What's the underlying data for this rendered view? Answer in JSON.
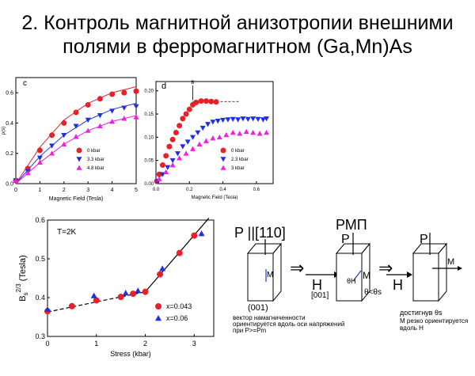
{
  "slide": {
    "title_line1": "2. Контроль магнитной анизотропии внешними",
    "title_line2": "полями в ферромагнитном (Ga,Mn)As"
  },
  "chart_data": [
    {
      "type": "scatter",
      "panel_label": "c",
      "xlabel": "Magnetic Field (Tesla)",
      "ylabel": "ρ(s)",
      "xlim": [
        0,
        5
      ],
      "ylim": [
        0,
        0.7
      ],
      "xticks": [
        "0",
        "1",
        "2",
        "3",
        "4",
        "5"
      ],
      "yticks": [
        "0.0",
        "0.2",
        "0.4",
        "0.6"
      ],
      "legend": [
        "0 kbar",
        "3.3 kbar",
        "4.8 kbar"
      ],
      "series": [
        {
          "name": "0 kbar",
          "marker": "circle",
          "color": "#e8202a",
          "x": [
            0,
            0.5,
            1,
            1.5,
            2,
            2.5,
            3,
            3.5,
            4,
            4.5,
            5
          ],
          "y": [
            0.02,
            0.1,
            0.22,
            0.32,
            0.4,
            0.47,
            0.52,
            0.56,
            0.59,
            0.6,
            0.61
          ]
        },
        {
          "name": "3.3 kbar",
          "marker": "triangle-down",
          "color": "#2030e0",
          "x": [
            0,
            0.5,
            1,
            1.5,
            2,
            2.5,
            3,
            3.5,
            4,
            4.5,
            5
          ],
          "y": [
            0.02,
            0.08,
            0.17,
            0.25,
            0.32,
            0.38,
            0.42,
            0.45,
            0.48,
            0.5,
            0.51
          ]
        },
        {
          "name": "4.8 kbar",
          "marker": "triangle-up",
          "color": "#ee22dd",
          "x": [
            0,
            0.5,
            1,
            1.5,
            2,
            2.5,
            3,
            3.5,
            4,
            4.5,
            5
          ],
          "y": [
            0.02,
            0.07,
            0.14,
            0.2,
            0.26,
            0.31,
            0.35,
            0.38,
            0.41,
            0.43,
            0.44
          ]
        }
      ],
      "fit_lines": [
        {
          "color": "#e8202a",
          "x": [
            0,
            1,
            2,
            3,
            4,
            5
          ],
          "y": [
            0,
            0.24,
            0.42,
            0.53,
            0.6,
            0.64
          ]
        },
        {
          "color": "#2030e0",
          "x": [
            0,
            1,
            2,
            3,
            4,
            5
          ],
          "y": [
            0,
            0.18,
            0.32,
            0.42,
            0.49,
            0.53
          ]
        },
        {
          "color": "#ee22dd",
          "x": [
            0,
            1,
            2,
            3,
            4,
            5
          ],
          "y": [
            0,
            0.14,
            0.26,
            0.35,
            0.41,
            0.45
          ]
        }
      ]
    },
    {
      "type": "scatter",
      "panel_label": "d",
      "annotation": "B",
      "xlabel": "Magnetic Field (Tesla)",
      "ylabel": "",
      "xlim": [
        0,
        0.7
      ],
      "ylim": [
        0,
        0.22
      ],
      "xticks": [
        "0.0",
        "0.2",
        "0.4",
        "0.6"
      ],
      "yticks": [
        "0.00",
        "0.05",
        "0.10",
        "0.15",
        "0.20"
      ],
      "legend": [
        "0 kbar",
        "2.3 kbar",
        "3 kbar"
      ],
      "series": [
        {
          "name": "0 kbar",
          "marker": "circle",
          "color": "#e8202a",
          "x": [
            0.005,
            0.02,
            0.04,
            0.06,
            0.08,
            0.1,
            0.12,
            0.14,
            0.16,
            0.18,
            0.2,
            0.22,
            0.24,
            0.27,
            0.3,
            0.33,
            0.36
          ],
          "y": [
            0.005,
            0.02,
            0.04,
            0.06,
            0.08,
            0.095,
            0.11,
            0.125,
            0.14,
            0.15,
            0.16,
            0.17,
            0.175,
            0.178,
            0.178,
            0.177,
            0.176
          ]
        },
        {
          "name": "2.3 kbar",
          "marker": "triangle-down",
          "color": "#2030e0",
          "x": [
            0.01,
            0.04,
            0.07,
            0.1,
            0.13,
            0.16,
            0.19,
            0.22,
            0.25,
            0.28,
            0.31,
            0.34,
            0.37,
            0.4,
            0.43,
            0.46,
            0.49,
            0.52,
            0.55,
            0.58,
            0.61,
            0.64,
            0.66
          ],
          "y": [
            0.005,
            0.02,
            0.035,
            0.05,
            0.065,
            0.08,
            0.09,
            0.1,
            0.11,
            0.12,
            0.128,
            0.133,
            0.135,
            0.137,
            0.138,
            0.139,
            0.138,
            0.14,
            0.139,
            0.14,
            0.139,
            0.138,
            0.14
          ]
        },
        {
          "name": "3 kbar",
          "marker": "triangle-up",
          "color": "#ee22dd",
          "x": [
            0.02,
            0.06,
            0.1,
            0.14,
            0.18,
            0.22,
            0.26,
            0.3,
            0.34,
            0.38,
            0.42,
            0.46,
            0.5,
            0.54,
            0.58,
            0.62,
            0.66
          ],
          "y": [
            0.01,
            0.025,
            0.04,
            0.055,
            0.065,
            0.075,
            0.085,
            0.092,
            0.098,
            0.1,
            0.105,
            0.11,
            0.108,
            0.112,
            0.11,
            0.108,
            0.11
          ]
        }
      ],
      "legend_extra": []
    },
    {
      "type": "line",
      "panel_label": "T=2K",
      "xlabel": "Stress (kbar)",
      "ylabel": "Bs2/3 (Tesla)",
      "ylabel_base": "B",
      "ylabel_sub": "s",
      "ylabel_sup": "2/3",
      "ylabel_unit": "(Tesla)",
      "xlim": [
        0,
        3.4
      ],
      "ylim": [
        0.3,
        0.6
      ],
      "xticks": [
        "0",
        "1",
        "2",
        "3"
      ],
      "yticks": [
        "0.3",
        "0.4",
        "0.5",
        "0.6"
      ],
      "legend": [
        "x=0.043",
        "x=0.06"
      ],
      "series": [
        {
          "name": "x=0.043",
          "marker": "circle",
          "color": "#e8202a",
          "x": [
            0,
            0.5,
            1,
            1.5,
            1.75,
            2,
            2.3,
            2.7,
            3.0
          ],
          "y": [
            0.365,
            0.378,
            0.393,
            0.402,
            0.41,
            0.415,
            0.46,
            0.515,
            0.56
          ]
        },
        {
          "name": "x=0.06",
          "marker": "triangle-up",
          "color": "#2030e0",
          "x": [
            0,
            0.95,
            1.6,
            1.85,
            2.35,
            3.15
          ],
          "y": [
            0.37,
            0.405,
            0.412,
            0.418,
            0.475,
            0.565
          ]
        }
      ],
      "fit_lines": [
        {
          "style": "dashed",
          "x": [
            0,
            2.0
          ],
          "y": [
            0.363,
            0.415
          ]
        },
        {
          "style": "solid",
          "x": [
            2.0,
            3.3
          ],
          "y": [
            0.415,
            0.605
          ]
        }
      ]
    }
  ],
  "diagram": {
    "label_p_110": "P ||[110]",
    "label_rmp": "РМП",
    "label_p_mid": "P",
    "label_p_right": "P",
    "label_h_left": "H",
    "label_h_right": "H",
    "label_m_left": "M",
    "label_m_mid": "M",
    "label_m_right": "M",
    "label_theta_h": "θH",
    "label_theta_s": "θ<θs",
    "label_001": "(001)",
    "label_001_b": "[001]",
    "caption_left_1": "вектор намагниченности",
    "caption_left_2": "ориентируется вдоль оси напряжений",
    "caption_left_3": "при P>=Pm",
    "caption_right_1": "достигнув θs",
    "caption_right_2": "М резко ориентируется",
    "caption_right_3": "вдоль H",
    "implies_symbol": "⇒"
  }
}
